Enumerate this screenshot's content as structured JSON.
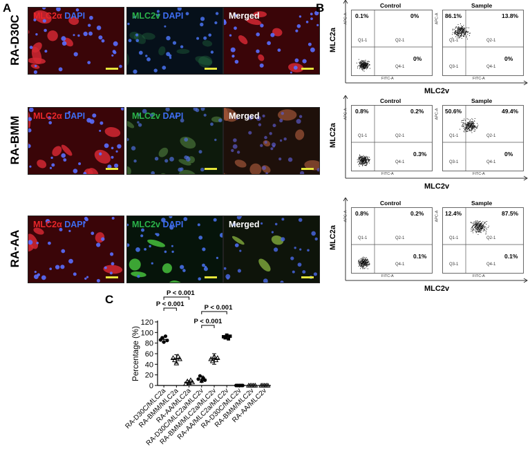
{
  "panel_a": {
    "letter": "A",
    "rows": [
      {
        "label": "RA-D30C",
        "images": [
          {
            "parts": [
              {
                "text": "MLC2α",
                "color": "red"
              },
              {
                "text": " DAPI",
                "color": "blue"
              }
            ],
            "tint": "red"
          },
          {
            "parts": [
              {
                "text": "MLC2v",
                "color": "green"
              },
              {
                "text": " DAPI",
                "color": "blue"
              }
            ],
            "tint": "blue"
          },
          {
            "parts": [
              {
                "text": "Merged",
                "color": "white"
              }
            ],
            "tint": "red"
          }
        ]
      },
      {
        "label": "RA-BMM",
        "images": [
          {
            "parts": [
              {
                "text": "MLC2α",
                "color": "red"
              },
              {
                "text": " DAPI",
                "color": "blue"
              }
            ],
            "tint": "red"
          },
          {
            "parts": [
              {
                "text": "MLC2v",
                "color": "green"
              },
              {
                "text": " DAPI",
                "color": "blue"
              }
            ],
            "tint": "dimgreen"
          },
          {
            "parts": [
              {
                "text": "Merged",
                "color": "white"
              }
            ],
            "tint": "brown"
          }
        ]
      },
      {
        "label": "RA-AA",
        "images": [
          {
            "parts": [
              {
                "text": "MLC2α",
                "color": "red"
              },
              {
                "text": " DAPI",
                "color": "blue"
              }
            ],
            "tint": "red"
          },
          {
            "parts": [
              {
                "text": "MLC2v",
                "color": "green"
              },
              {
                "text": " DAPI",
                "color": "blue"
              }
            ],
            "tint": "green"
          },
          {
            "parts": [
              {
                "text": "Merged",
                "color": "white"
              }
            ],
            "tint": "mixed"
          }
        ]
      }
    ]
  },
  "panel_b": {
    "letter": "B",
    "rows": [
      {
        "ylabel": "MLC2a",
        "xlabel": "MLC2v",
        "plots": [
          {
            "title": "Control",
            "q1": "0.1%",
            "q2": "0%",
            "q4": "0%"
          },
          {
            "title": "Sample",
            "q1": "86.1%",
            "q2": "13.8%",
            "q4": "0%"
          }
        ]
      },
      {
        "ylabel": "MLC2a",
        "xlabel": "MLC2v",
        "plots": [
          {
            "title": "Control",
            "q1": "0.8%",
            "q2": "0.2%",
            "q4": "0.3%"
          },
          {
            "title": "Sample",
            "q1": "50.6%",
            "q2": "49.4%",
            "q4": "0%"
          }
        ]
      },
      {
        "ylabel": "MLC2a",
        "xlabel": "MLC2v",
        "plots": [
          {
            "title": "Control",
            "q1": "0.8%",
            "q2": "0.2%",
            "q4": "0.1%"
          },
          {
            "title": "Sample",
            "q1": "12.4%",
            "q2": "87.5%",
            "q4": "0.1%"
          }
        ]
      }
    ],
    "quad_names": {
      "q1": "Q1-1",
      "q2": "Q2-1",
      "q3": "Q3-1",
      "q4": "Q4-1"
    },
    "axis_x": "FITC-A",
    "axis_y": "APC-A"
  },
  "panel_c": {
    "letter": "C"
  },
  "chart_data": {
    "type": "scatter",
    "ylabel": "Percentage (%)",
    "ylim": [
      0,
      120
    ],
    "yticks": [
      0,
      20,
      40,
      60,
      80,
      100,
      120
    ],
    "categories": [
      "RA-D30C/MLC2a",
      "RA-BMM/MLC2a",
      "RA-AA/MLC2a",
      "RA-D30C/MLC2a/MLC2v",
      "RA-BMM/MLC2a/MLC2v",
      "RA-AA/MLC2a/MLC2v",
      "RA-D30C/MLC2v",
      "RA-BMM/MLC2v",
      "RA-AA/MLC2v"
    ],
    "markers": [
      "circle",
      "triangle",
      "triangle",
      "circle",
      "triangle",
      "square",
      "circle",
      "triangle",
      "triangle"
    ],
    "points": [
      [
        86,
        90,
        82,
        93,
        85
      ],
      [
        52,
        48,
        42,
        55,
        50
      ],
      [
        3,
        8,
        5,
        10,
        6
      ],
      [
        12,
        18,
        8,
        14,
        10
      ],
      [
        50,
        46,
        55,
        48,
        52
      ],
      [
        92,
        90,
        95,
        88,
        93
      ],
      [
        0,
        0,
        0,
        0,
        0
      ],
      [
        0,
        0,
        0,
        0,
        0
      ],
      [
        0,
        0,
        0,
        0,
        0
      ]
    ],
    "means": [
      87,
      50,
      6,
      12,
      50,
      92,
      0,
      0,
      0
    ],
    "sd": [
      5,
      8,
      3,
      6,
      10,
      3,
      0,
      0,
      0
    ],
    "significance": [
      {
        "label": "P < 0.001",
        "from": 0,
        "to": 2
      },
      {
        "label": "P < 0.001",
        "from": 0,
        "to": 1
      },
      {
        "label": "P < 0.001",
        "from": 3,
        "to": 5
      },
      {
        "label": "P < 0.001",
        "from": 3,
        "to": 4
      }
    ]
  }
}
